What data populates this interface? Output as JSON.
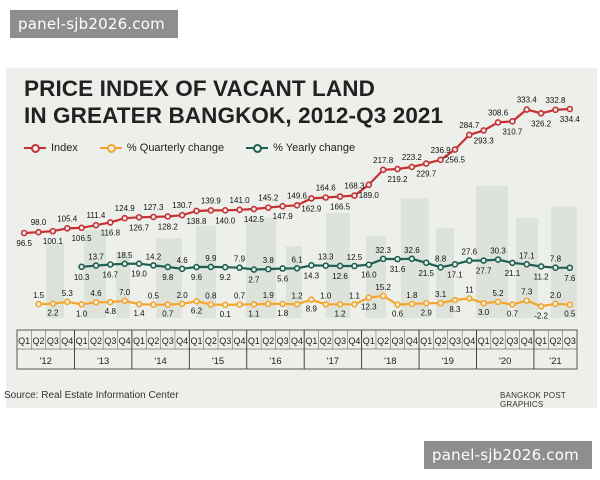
{
  "watermark": "panel-sjb2026.com",
  "title_line1": "PRICE INDEX OF VACANT LAND",
  "title_line2": "IN GREATER BANGKOK, 2012-Q3 2021",
  "source": "Source: Real Estate Information Center",
  "credit": "BANGKOK POST GRAPHICS",
  "colors": {
    "index": "#c62f33",
    "quarterly": "#f4a62b",
    "yearly": "#1f5f52",
    "card_background": "#edf0ea",
    "skyline": "#dde3da"
  },
  "chart_data": {
    "type": "line",
    "title": "PRICE INDEX OF VACANT LAND IN GREATER BANGKOK, 2012-Q3 2021",
    "legend_position": "top-left",
    "grid": false,
    "x_labels": [
      "Q1",
      "Q2",
      "Q3",
      "Q4",
      "Q1",
      "Q2",
      "Q3",
      "Q4",
      "Q1",
      "Q2",
      "Q3",
      "Q4",
      "Q1",
      "Q2",
      "Q3",
      "Q4",
      "Q1",
      "Q2",
      "Q3",
      "Q4",
      "Q1",
      "Q2",
      "Q3",
      "Q4",
      "Q1",
      "Q2",
      "Q3",
      "Q4",
      "Q1",
      "Q2",
      "Q3",
      "Q4",
      "Q1",
      "Q2",
      "Q3",
      "Q4",
      "Q1",
      "Q2",
      "Q3"
    ],
    "years": [
      {
        "label": "'12",
        "quarters": 4
      },
      {
        "label": "'13",
        "quarters": 4
      },
      {
        "label": "'14",
        "quarters": 4
      },
      {
        "label": "'15",
        "quarters": 4
      },
      {
        "label": "'16",
        "quarters": 4
      },
      {
        "label": "'17",
        "quarters": 4
      },
      {
        "label": "'18",
        "quarters": 4
      },
      {
        "label": "'19",
        "quarters": 4
      },
      {
        "label": "'20",
        "quarters": 4
      },
      {
        "label": "'21",
        "quarters": 3
      }
    ],
    "series": [
      {
        "name": "Index",
        "values": [
          96.5,
          98.0,
          100.1,
          105.4,
          106.5,
          111.4,
          116.8,
          124.9,
          126.7,
          127.3,
          128.2,
          130.7,
          138.8,
          139.9,
          140.0,
          141.0,
          142.5,
          145.2,
          147.9,
          149.6,
          162.9,
          164.6,
          166.5,
          168.3,
          189.0,
          217.8,
          219.2,
          223.2,
          229.7,
          236.9,
          256.5,
          284.7,
          293.3,
          308.6,
          310.7,
          333.4,
          326.2,
          332.8,
          334.4
        ],
        "labels": [
          "96.5",
          "98.0",
          "100.1",
          "105.4",
          "106.5",
          "111.4",
          "116.8",
          "124.9",
          "126.7",
          "127.3",
          "128.2",
          "130.7",
          "138.8",
          "139.9",
          "140.0",
          "141.0",
          "142.5",
          "145.2",
          "147.9",
          "149.6",
          "162.9",
          "164.6",
          "166.5",
          "168.3",
          "189.0",
          "217.8",
          "219.2",
          "223.2",
          "229.7",
          "236.9",
          "256.5",
          "284.7",
          "293.3",
          "308.6",
          "310.7",
          "333.4",
          "326.2",
          "332.8",
          "334.4"
        ]
      },
      {
        "name": "% Quarterly change",
        "values": [
          null,
          1.5,
          2.2,
          5.3,
          1.0,
          4.6,
          4.8,
          7.0,
          1.4,
          0.5,
          0.7,
          2.0,
          6.2,
          0.8,
          0.1,
          0.7,
          1.1,
          1.9,
          1.8,
          1.2,
          8.9,
          1.0,
          1.2,
          1.1,
          12.3,
          15.2,
          0.6,
          1.8,
          2.9,
          3.1,
          8.3,
          11,
          3.0,
          5.2,
          0.7,
          7.3,
          -2.2,
          2.0,
          0.5
        ],
        "labels": [
          "",
          "1.5",
          "2.2",
          "5.3",
          "1.0",
          "4.6",
          "4.8",
          "7.0",
          "1.4",
          "0.5",
          "0.7",
          "2.0",
          "6.2",
          "0.8",
          "0.1",
          "0.7",
          "1.1",
          "1.9",
          "1.8",
          "1.2",
          "8.9",
          "1.0",
          "1.2",
          "1.1",
          "12.3",
          "15.2",
          "0.6",
          "1.8",
          "2.9",
          "3.1",
          "8.3",
          "11",
          "3.0",
          "5.2",
          "0.7",
          "7.3",
          "-2.2",
          "2.0",
          "0.5"
        ]
      },
      {
        "name": "% Yearly change",
        "values": [
          null,
          null,
          null,
          null,
          10.3,
          13.7,
          16.7,
          18.5,
          19.0,
          14.2,
          9.8,
          4.6,
          9.6,
          9.9,
          9.2,
          7.9,
          2.7,
          3.8,
          5.6,
          6.1,
          14.3,
          13.3,
          12.6,
          12.5,
          16.0,
          32.3,
          31.6,
          32.6,
          21.5,
          8.8,
          17.1,
          27.6,
          27.7,
          30.3,
          21.1,
          17.1,
          11.2,
          7.8,
          7.6
        ],
        "labels": [
          "",
          "",
          "",
          "",
          "10.3",
          "13.7",
          "16.7",
          "18.5",
          "19.0",
          "14.2",
          "9.8",
          "4.6",
          "9.6",
          "9.9",
          "9.2",
          "7.9",
          "2.7",
          "3.8",
          "5.6",
          "6.1",
          "14.3",
          "13.3",
          "12.6",
          "12.5",
          "16.0",
          "32.3",
          "31.6",
          "32.6",
          "21.5",
          "8.8",
          "17.1",
          "27.6",
          "27.7",
          "30.3",
          "21.1",
          "17.1",
          "11.2",
          "7.8",
          "7.6"
        ]
      }
    ]
  }
}
